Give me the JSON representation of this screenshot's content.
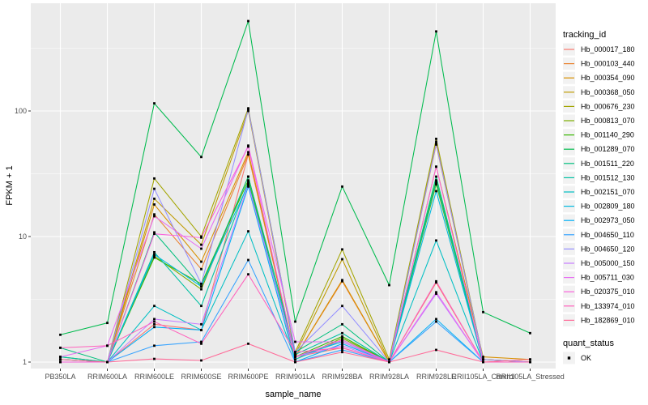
{
  "figure": {
    "background": "#FFFFFF",
    "panel_background": "#EBEBEB",
    "grid_color": "#FFFFFF",
    "tick_color": "#333333",
    "tick_label_color": "#4D4D4D",
    "point_color": "#000000",
    "legend_key_background": "#F2F2F2"
  },
  "chart_data": {
    "type": "line",
    "title": "",
    "xlabel": "sample_name",
    "ylabel": "FPKM + 1",
    "y_scale": "log10",
    "ylim": [
      1,
      720
    ],
    "y_ticks": [
      1,
      10,
      100
    ],
    "y_minor_ticks": [
      3.162,
      31.62,
      316.2
    ],
    "grid": "on",
    "point_shape": "square",
    "legend_position": "right",
    "categories": [
      "PB350LA",
      "RRIM600LA",
      "RRIM600LE",
      "RRIM600SE",
      "RRIM600PE",
      "RRIM901LA",
      "RRIM928BA",
      "RRIM928LA",
      "RRIM928LE",
      "RRII105LA_Control",
      "RRII105LA_Stressed"
    ],
    "legend": {
      "color_title": "tracking_id",
      "shape_title": "quant_status",
      "shape_items": [
        {
          "label": "OK"
        }
      ]
    },
    "series": [
      {
        "name": "Hb_000017_180",
        "color": "#F8766D",
        "values": [
          1.05,
          1.0,
          2.0,
          1.8,
          45,
          1.1,
          1.3,
          1.0,
          4.3,
          1.0,
          1.0
        ]
      },
      {
        "name": "Hb_000103_440",
        "color": "#EA8331",
        "values": [
          1.0,
          1.0,
          15,
          5.5,
          45,
          1.1,
          4.4,
          1.0,
          54,
          1.05,
          1.0
        ]
      },
      {
        "name": "Hb_000354_090",
        "color": "#D89000",
        "values": [
          1.0,
          1.0,
          18,
          6.3,
          47,
          1.1,
          4.5,
          1.0,
          36,
          1.1,
          1.05
        ]
      },
      {
        "name": "Hb_000368_050",
        "color": "#C09B00",
        "values": [
          1.0,
          1.0,
          20,
          8.6,
          100,
          1.15,
          6.6,
          1.0,
          57,
          1.05,
          1.0
        ]
      },
      {
        "name": "Hb_000676_230",
        "color": "#A3A500",
        "values": [
          1.0,
          1.0,
          29,
          10,
          105,
          1.2,
          7.9,
          1.05,
          60,
          1.05,
          1.0
        ]
      },
      {
        "name": "Hb_000813_070",
        "color": "#7CAE00",
        "values": [
          1.05,
          1.0,
          7.0,
          3.8,
          30,
          1.05,
          1.55,
          1.0,
          26,
          1.0,
          1.0
        ]
      },
      {
        "name": "Hb_001140_290",
        "color": "#39B600",
        "values": [
          1.1,
          1.0,
          6.8,
          4.2,
          28,
          1.1,
          1.6,
          1.0,
          28,
          1.0,
          1.0
        ]
      },
      {
        "name": "Hb_001289_070",
        "color": "#00BB4E",
        "values": [
          1.65,
          2.05,
          115,
          43,
          520,
          2.1,
          25,
          4.1,
          430,
          2.5,
          1.7
        ]
      },
      {
        "name": "Hb_001511_220",
        "color": "#00BF7D",
        "values": [
          1.3,
          1.0,
          10.8,
          4.0,
          30,
          1.2,
          2.0,
          1.0,
          30,
          1.0,
          1.0
        ]
      },
      {
        "name": "Hb_001512_130",
        "color": "#00C1A3",
        "values": [
          1.1,
          1.0,
          7.5,
          2.8,
          27,
          1.15,
          1.7,
          1.0,
          27,
          1.0,
          1.0
        ]
      },
      {
        "name": "Hb_002151_070",
        "color": "#00BFC4",
        "values": [
          1.05,
          1.0,
          2.8,
          1.8,
          11,
          1.05,
          1.5,
          1.0,
          9.3,
          1.0,
          1.0
        ]
      },
      {
        "name": "Hb_002809_180",
        "color": "#00BAE0",
        "values": [
          1.0,
          1.0,
          7.2,
          4.0,
          26,
          1.1,
          1.45,
          1.0,
          23,
          1.0,
          1.0
        ]
      },
      {
        "name": "Hb_002973_050",
        "color": "#00B0F6",
        "values": [
          1.0,
          1.0,
          1.9,
          1.8,
          25,
          1.0,
          1.4,
          1.0,
          2.2,
          1.0,
          1.0
        ]
      },
      {
        "name": "Hb_004650_110",
        "color": "#35A2FF",
        "values": [
          1.0,
          1.0,
          1.35,
          1.45,
          6.5,
          1.0,
          1.25,
          1.0,
          2.1,
          1.0,
          1.0
        ]
      },
      {
        "name": "Hb_004650_120",
        "color": "#9590FF",
        "values": [
          1.0,
          1.0,
          24,
          4.2,
          103,
          1.2,
          2.8,
          1.0,
          55,
          1.05,
          1.0
        ]
      },
      {
        "name": "Hb_005000_150",
        "color": "#C77CFF",
        "values": [
          1.0,
          1.0,
          2.2,
          2.0,
          26,
          1.1,
          1.35,
          1.0,
          3.5,
          1.0,
          1.0
        ]
      },
      {
        "name": "Hb_005711_030",
        "color": "#E76BF3",
        "values": [
          1.1,
          1.35,
          14.5,
          8.0,
          53,
          1.45,
          1.45,
          1.0,
          3.6,
          1.0,
          1.0
        ]
      },
      {
        "name": "Hb_020375_010",
        "color": "#FA62DB",
        "values": [
          1.0,
          1.0,
          10.5,
          9.8,
          52,
          1.1,
          1.5,
          1.0,
          36,
          1.0,
          1.0
        ]
      },
      {
        "name": "Hb_133974_010",
        "color": "#FF62BC",
        "values": [
          1.3,
          1.35,
          2.1,
          1.4,
          5.0,
          1.2,
          1.3,
          1.0,
          4.4,
          1.0,
          1.0
        ]
      },
      {
        "name": "Hb_182869_010",
        "color": "#FF6A98",
        "values": [
          1.05,
          1.0,
          1.06,
          1.03,
          1.4,
          1.0,
          1.2,
          1.0,
          1.25,
          1.0,
          1.05
        ]
      }
    ]
  }
}
